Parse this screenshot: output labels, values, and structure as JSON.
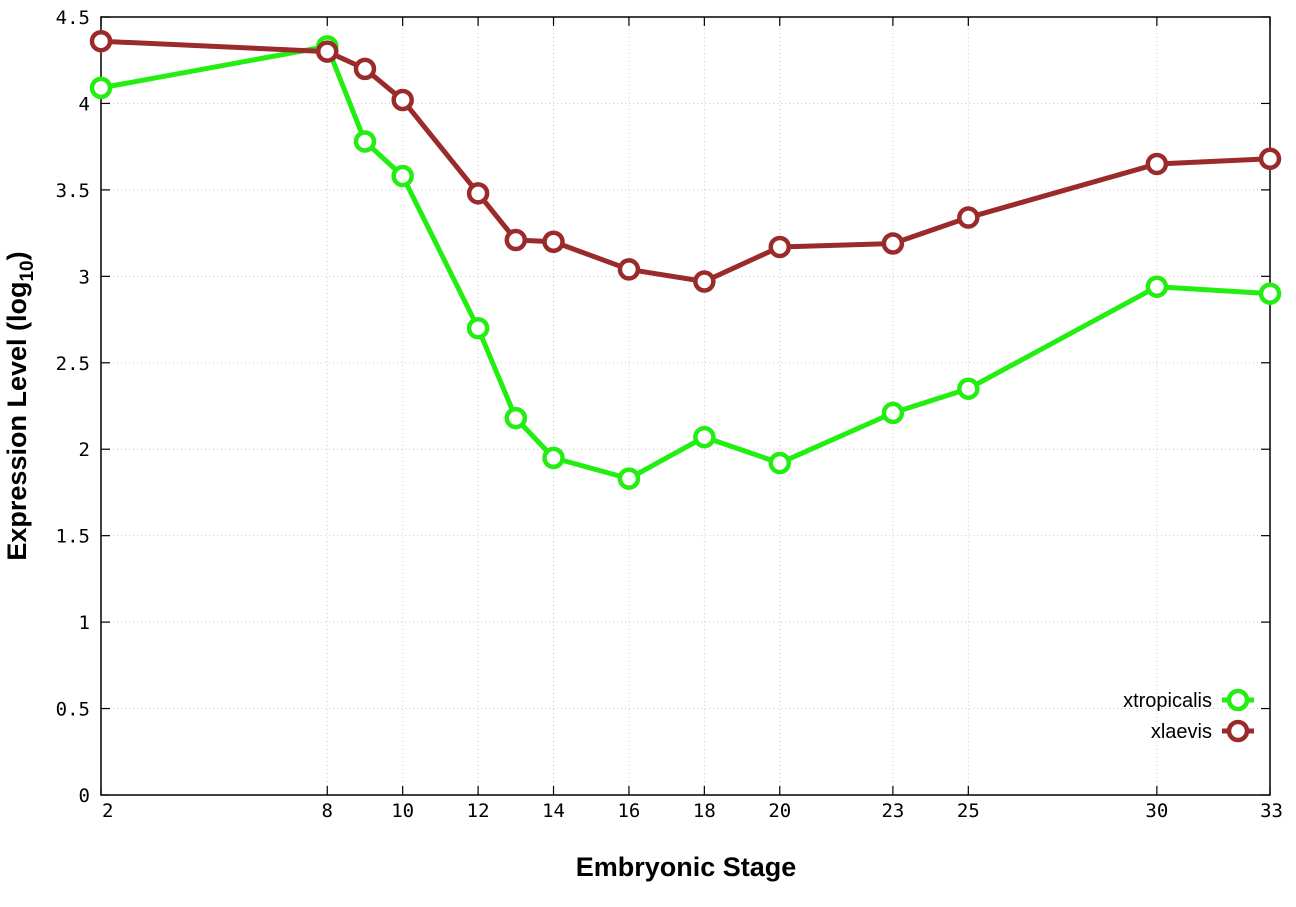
{
  "chart_data": {
    "type": "line",
    "xlabel": "Embryonic Stage",
    "ylabel": "Expression Level (log",
    "ylabel_subscript": "10",
    "ylabel_close": ")",
    "xlim": [
      2,
      33
    ],
    "ylim": [
      0,
      4.5
    ],
    "xticks": [
      2,
      8,
      10,
      12,
      14,
      16,
      18,
      20,
      23,
      25,
      30,
      33
    ],
    "yticks": [
      0,
      0.5,
      1,
      1.5,
      2,
      2.5,
      3,
      3.5,
      4,
      4.5
    ],
    "xtick_labels": [
      "2",
      "8",
      "10",
      "12",
      "14",
      "16",
      "18",
      "20",
      "23",
      "25",
      "30",
      "33"
    ],
    "ytick_labels": [
      "0",
      "0.5",
      "1",
      "1.5",
      "2",
      "2.5",
      "3",
      "3.5",
      "4",
      "4.5"
    ],
    "grid": true,
    "legend_position": "bottom-right",
    "series": [
      {
        "name": "xtropicalis",
        "color": "#22ee11",
        "marker": "open-circle",
        "x": [
          2,
          8,
          9,
          10,
          12,
          13,
          14,
          16,
          18,
          20,
          23,
          25,
          30,
          33
        ],
        "y": [
          4.09,
          4.33,
          3.78,
          3.58,
          2.7,
          2.18,
          1.95,
          1.83,
          2.07,
          1.92,
          2.21,
          2.35,
          2.94,
          2.9
        ]
      },
      {
        "name": "xlaevis",
        "color": "#9b2a2a",
        "marker": "open-circle",
        "x": [
          2,
          8,
          9,
          10,
          12,
          13,
          14,
          16,
          18,
          20,
          23,
          25,
          30,
          33
        ],
        "y": [
          4.36,
          4.3,
          4.2,
          4.02,
          3.48,
          3.21,
          3.2,
          3.04,
          2.97,
          3.17,
          3.19,
          3.34,
          3.65,
          3.68
        ]
      }
    ]
  }
}
